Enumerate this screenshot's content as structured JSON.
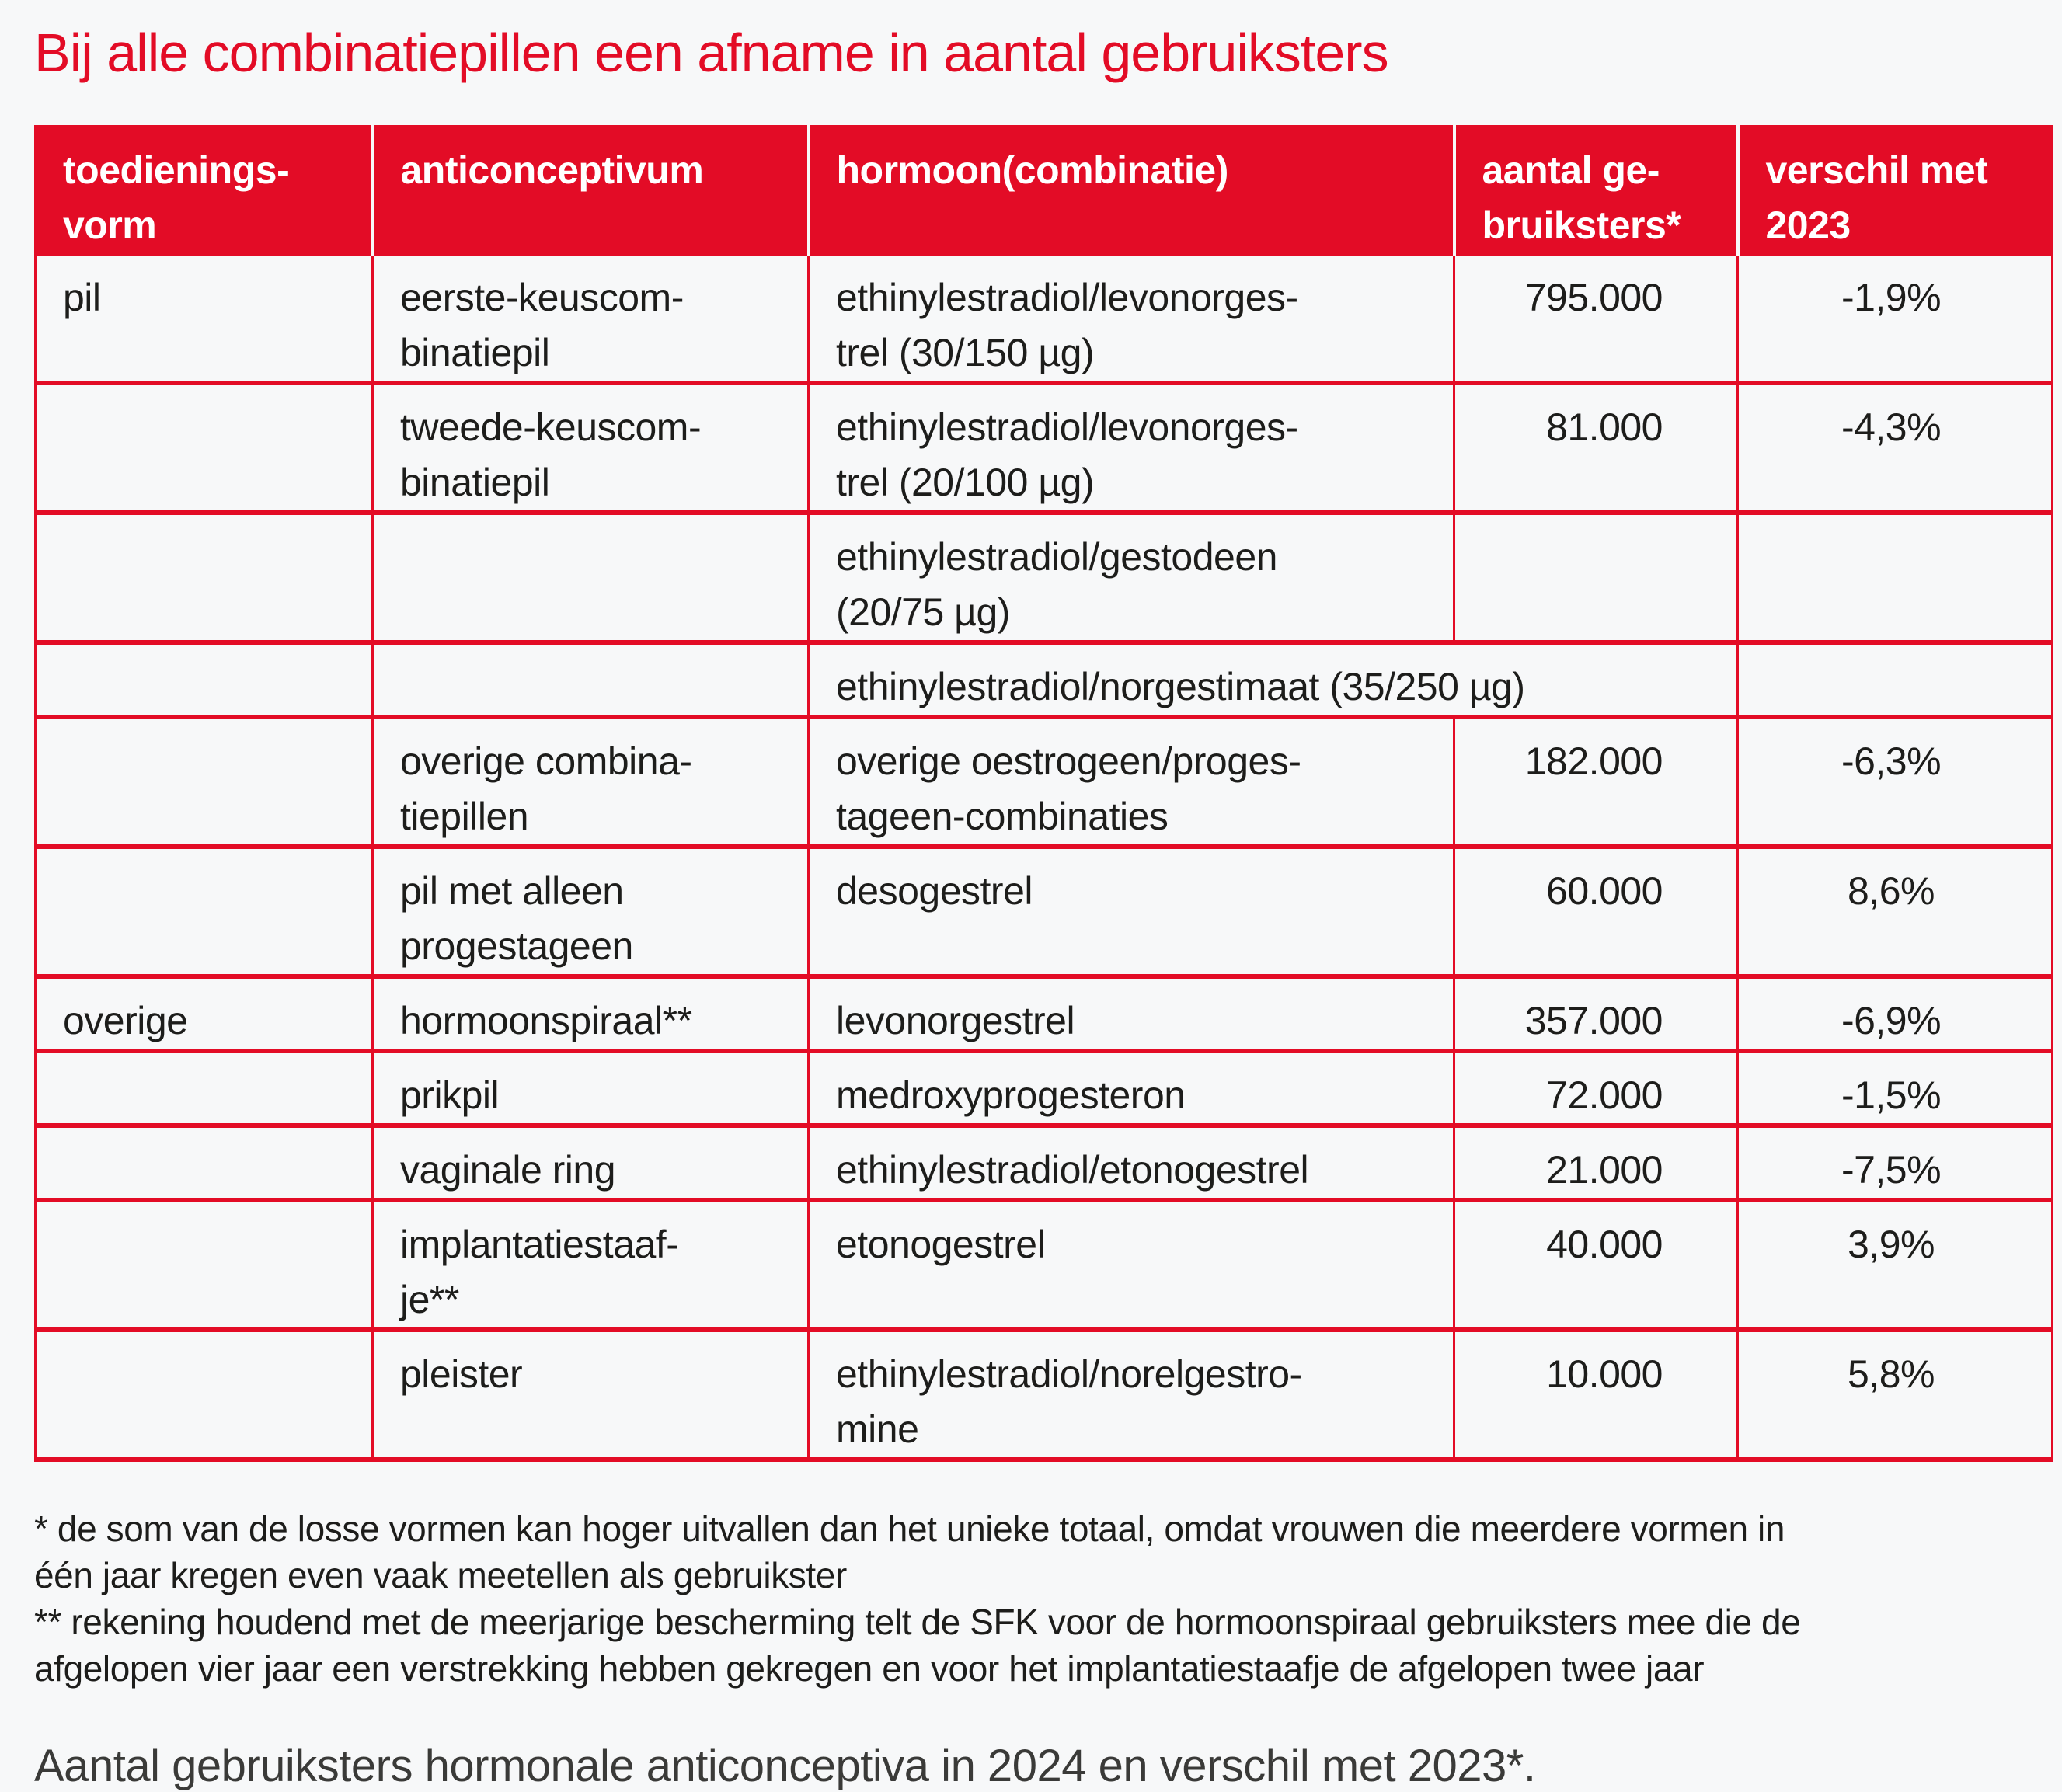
{
  "title": "Bij alle combinatiepillen een afname in aantal gebruiksters",
  "colors": {
    "brand_red": "#e30c26",
    "header_text": "#ffffff",
    "body_text": "#1d1d1b",
    "caption_text": "#3a3a38",
    "page_background": "#f7f8f9"
  },
  "table": {
    "columns": [
      {
        "label": "toedienings-\nvorm"
      },
      {
        "label": "anticonceptivum"
      },
      {
        "label": "hormoon(combinatie)"
      },
      {
        "label": "aantal ge-\nbruiksters*"
      },
      {
        "label": "verschil met\n2023"
      }
    ],
    "rows": [
      {
        "vorm": "pil",
        "anti": "eerste-keuscom-\nbinatiepil",
        "hormoon": "ethinylestradiol/levonorges-\ntrel (30/150 µg)",
        "aantal": "795.000",
        "verschil": "-1,9%",
        "lines": 2,
        "merge": false
      },
      {
        "vorm": "",
        "anti": "tweede-keuscom-\nbinatiepil",
        "hormoon": "ethinylestradiol/levonorges-\ntrel (20/100 µg)",
        "aantal": "81.000",
        "verschil": "-4,3%",
        "lines": 2,
        "merge": false
      },
      {
        "vorm": "",
        "anti": "",
        "hormoon": "ethinylestradiol/gestodeen\n(20/75 µg)",
        "aantal": "",
        "verschil": "",
        "lines": 2,
        "merge": false
      },
      {
        "vorm": "",
        "anti": "",
        "hormoon": "ethinylestradiol/norgestimaat (35/250 µg)",
        "aantal": "",
        "verschil": "",
        "lines": 1,
        "merge": true
      },
      {
        "vorm": "",
        "anti": "overige combina-\ntiepillen",
        "hormoon": "overige oestrogeen/proges-\ntageen-combinaties",
        "aantal": "182.000",
        "verschil": "-6,3%",
        "lines": 2,
        "merge": false
      },
      {
        "vorm": "",
        "anti": "pil met alleen\nprogestageen",
        "hormoon": "desogestrel",
        "aantal": "60.000",
        "verschil": "8,6%",
        "lines": 2,
        "merge": false
      },
      {
        "vorm": "overige",
        "anti": "hormoonspiraal**",
        "hormoon": "levonorgestrel",
        "aantal": "357.000",
        "verschil": "-6,9%",
        "lines": 1,
        "merge": false
      },
      {
        "vorm": "",
        "anti": "prikpil",
        "hormoon": "medroxyprogesteron",
        "aantal": "72.000",
        "verschil": "-1,5%",
        "lines": 1,
        "merge": false
      },
      {
        "vorm": "",
        "anti": "vaginale ring",
        "hormoon": "ethinylestradiol/etonogestrel",
        "aantal": "21.000",
        "verschil": "-7,5%",
        "lines": 1,
        "merge": false
      },
      {
        "vorm": "",
        "anti": "implantatiestaaf-\nje**",
        "hormoon": "etonogestrel",
        "aantal": "40.000",
        "verschil": "3,9%",
        "lines": 2,
        "merge": false
      },
      {
        "vorm": "",
        "anti": "pleister",
        "hormoon": "ethinylestradiol/norelgestro-\nmine",
        "aantal": "10.000",
        "verschil": "5,8%",
        "lines": 2,
        "merge": false
      }
    ]
  },
  "footnotes": [
    "* de som van de losse vormen kan hoger uitvallen dan het unieke totaal, omdat vrouwen die meerdere vormen in",
    "één jaar kregen even vaak meetellen als gebruikster",
    "** rekening houdend met de meerjarige bescherming telt de SFK voor de hormoonspiraal gebruiksters mee die de",
    "afgelopen vier jaar een verstrekking hebben gekregen en voor het implantatiestaafje de afgelopen twee jaar"
  ],
  "caption": "Aantal gebruiksters hormonale anticonceptiva in 2024 en verschil met 2023*.",
  "chart_data": {
    "type": "table",
    "title": "Bij alle combinatiepillen een afname in aantal gebruiksters",
    "columns": [
      "toedieningsvorm",
      "anticonceptivum",
      "hormoon(combinatie)",
      "aantal gebruiksters",
      "verschil met 2023"
    ],
    "rows": [
      [
        "pil",
        "eerste-keuscombinatiepil",
        "ethinylestradiol/levonorgestrel (30/150 µg)",
        795000,
        "-1,9%"
      ],
      [
        "pil",
        "tweede-keuscombinatiepil",
        "ethinylestradiol/levonorgestrel (20/100 µg)",
        81000,
        "-4,3%"
      ],
      [
        "pil",
        "",
        "ethinylestradiol/gestodeen (20/75 µg)",
        null,
        null
      ],
      [
        "pil",
        "",
        "ethinylestradiol/norgestimaat (35/250 µg)",
        null,
        null
      ],
      [
        "pil",
        "overige combinatiepillen",
        "overige oestrogeen/progestageen-combinaties",
        182000,
        "-6,3%"
      ],
      [
        "pil",
        "pil met alleen progestageen",
        "desogestrel",
        60000,
        "8,6%"
      ],
      [
        "overige",
        "hormoonspiraal**",
        "levonorgestrel",
        357000,
        "-6,9%"
      ],
      [
        "overige",
        "prikpil",
        "medroxyprogesteron",
        72000,
        "-1,5%"
      ],
      [
        "overige",
        "vaginale ring",
        "ethinylestradiol/etonogestrel",
        21000,
        "-7,5%"
      ],
      [
        "overige",
        "implantatiestaafje**",
        "etonogestrel",
        40000,
        "3,9%"
      ],
      [
        "overige",
        "pleister",
        "ethinylestradiol/norelgestromine",
        10000,
        "5,8%"
      ]
    ]
  }
}
